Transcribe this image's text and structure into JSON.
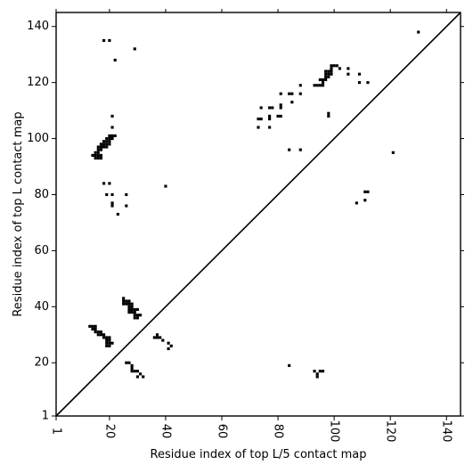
{
  "chart_data": {
    "type": "heatmap",
    "title": "",
    "xlabel": "Residue index of top L/5 contact map",
    "ylabel": "Residue index of top L contact map",
    "xlim": [
      1,
      145
    ],
    "ylim": [
      1,
      145
    ],
    "x_ticks": [
      1,
      20,
      40,
      60,
      80,
      100,
      120,
      140
    ],
    "y_ticks": [
      1,
      20,
      40,
      60,
      80,
      100,
      120,
      140
    ],
    "grid": false,
    "legend": "none",
    "diagonal": true,
    "mark_color": "#000000",
    "lower_triangle_contacts_xy": [
      [
        13,
        33
      ],
      [
        14,
        33
      ],
      [
        15,
        33
      ],
      [
        14,
        32
      ],
      [
        15,
        32
      ],
      [
        15,
        31
      ],
      [
        16,
        31
      ],
      [
        17,
        31
      ],
      [
        16,
        30
      ],
      [
        17,
        30
      ],
      [
        18,
        30
      ],
      [
        18,
        29
      ],
      [
        19,
        29
      ],
      [
        20,
        29
      ],
      [
        19,
        28
      ],
      [
        20,
        28
      ],
      [
        19,
        27
      ],
      [
        20,
        27
      ],
      [
        21,
        27
      ],
      [
        19,
        26
      ],
      [
        20,
        26
      ],
      [
        25,
        43
      ],
      [
        25,
        42
      ],
      [
        26,
        42
      ],
      [
        27,
        42
      ],
      [
        25,
        41
      ],
      [
        26,
        41
      ],
      [
        27,
        41
      ],
      [
        28,
        41
      ],
      [
        27,
        40
      ],
      [
        28,
        40
      ],
      [
        27,
        39
      ],
      [
        28,
        39
      ],
      [
        29,
        39
      ],
      [
        30,
        39
      ],
      [
        27,
        38
      ],
      [
        28,
        38
      ],
      [
        29,
        38
      ],
      [
        29,
        37
      ],
      [
        30,
        37
      ],
      [
        31,
        37
      ],
      [
        29,
        36
      ],
      [
        30,
        36
      ],
      [
        26,
        20
      ],
      [
        27,
        20
      ],
      [
        28,
        19
      ],
      [
        28,
        18
      ],
      [
        28,
        17
      ],
      [
        29,
        17
      ],
      [
        30,
        17
      ],
      [
        31,
        16
      ],
      [
        30,
        15
      ],
      [
        32,
        15
      ],
      [
        36,
        29
      ],
      [
        37,
        29
      ],
      [
        38,
        29
      ],
      [
        37,
        30
      ],
      [
        39,
        28
      ],
      [
        41,
        27
      ],
      [
        41,
        25
      ],
      [
        42,
        26
      ],
      [
        84,
        19
      ],
      [
        93,
        17
      ],
      [
        94,
        16
      ],
      [
        95,
        17
      ],
      [
        96,
        17
      ],
      [
        94,
        15
      ]
    ],
    "upper_triangle_contacts_xy": [
      [
        14,
        94
      ],
      [
        15,
        94
      ],
      [
        15,
        95
      ],
      [
        16,
        95
      ],
      [
        15,
        93
      ],
      [
        16,
        93
      ],
      [
        16,
        96
      ],
      [
        17,
        96
      ],
      [
        16,
        97
      ],
      [
        17,
        97
      ],
      [
        17,
        98
      ],
      [
        18,
        98
      ],
      [
        18,
        99
      ],
      [
        19,
        99
      ],
      [
        19,
        98
      ],
      [
        20,
        99
      ],
      [
        20,
        100
      ],
      [
        21,
        100
      ],
      [
        20,
        101
      ],
      [
        21,
        101
      ],
      [
        22,
        101
      ],
      [
        18,
        97
      ],
      [
        19,
        97
      ],
      [
        20,
        98
      ],
      [
        19,
        100
      ],
      [
        17,
        94
      ],
      [
        17,
        93
      ],
      [
        16,
        94
      ],
      [
        21,
        104
      ],
      [
        21,
        108
      ],
      [
        22,
        128
      ],
      [
        18,
        135
      ],
      [
        20,
        135
      ],
      [
        29,
        132
      ],
      [
        18,
        84
      ],
      [
        20,
        84
      ],
      [
        19,
        80
      ],
      [
        21,
        80
      ],
      [
        21,
        77
      ],
      [
        21,
        76
      ],
      [
        23,
        73
      ],
      [
        26,
        80
      ],
      [
        26,
        76
      ],
      [
        40,
        83
      ],
      [
        73,
        104
      ],
      [
        73,
        107
      ],
      [
        74,
        107
      ],
      [
        74,
        111
      ],
      [
        77,
        111
      ],
      [
        78,
        111
      ],
      [
        77,
        108
      ],
      [
        77,
        107
      ],
      [
        77,
        104
      ],
      [
        80,
        108
      ],
      [
        81,
        108
      ],
      [
        81,
        112
      ],
      [
        81,
        111
      ],
      [
        81,
        116
      ],
      [
        84,
        116
      ],
      [
        85,
        116
      ],
      [
        85,
        113
      ],
      [
        88,
        116
      ],
      [
        88,
        119
      ],
      [
        84,
        96
      ],
      [
        88,
        96
      ],
      [
        93,
        119
      ],
      [
        94,
        119
      ],
      [
        95,
        119
      ],
      [
        96,
        119
      ],
      [
        95,
        121
      ],
      [
        96,
        121
      ],
      [
        96,
        120
      ],
      [
        97,
        121
      ],
      [
        97,
        122
      ],
      [
        98,
        122
      ],
      [
        97,
        123
      ],
      [
        98,
        123
      ],
      [
        99,
        123
      ],
      [
        97,
        124
      ],
      [
        98,
        124
      ],
      [
        99,
        124
      ],
      [
        99,
        125
      ],
      [
        99,
        126
      ],
      [
        100,
        126
      ],
      [
        101,
        126
      ],
      [
        102,
        125
      ],
      [
        98,
        109
      ],
      [
        98,
        108
      ],
      [
        105,
        125
      ],
      [
        105,
        123
      ],
      [
        109,
        123
      ],
      [
        109,
        120
      ],
      [
        112,
        120
      ],
      [
        108,
        77
      ],
      [
        111,
        78
      ],
      [
        111,
        81
      ],
      [
        112,
        81
      ],
      [
        121,
        95
      ],
      [
        130,
        138
      ]
    ]
  }
}
